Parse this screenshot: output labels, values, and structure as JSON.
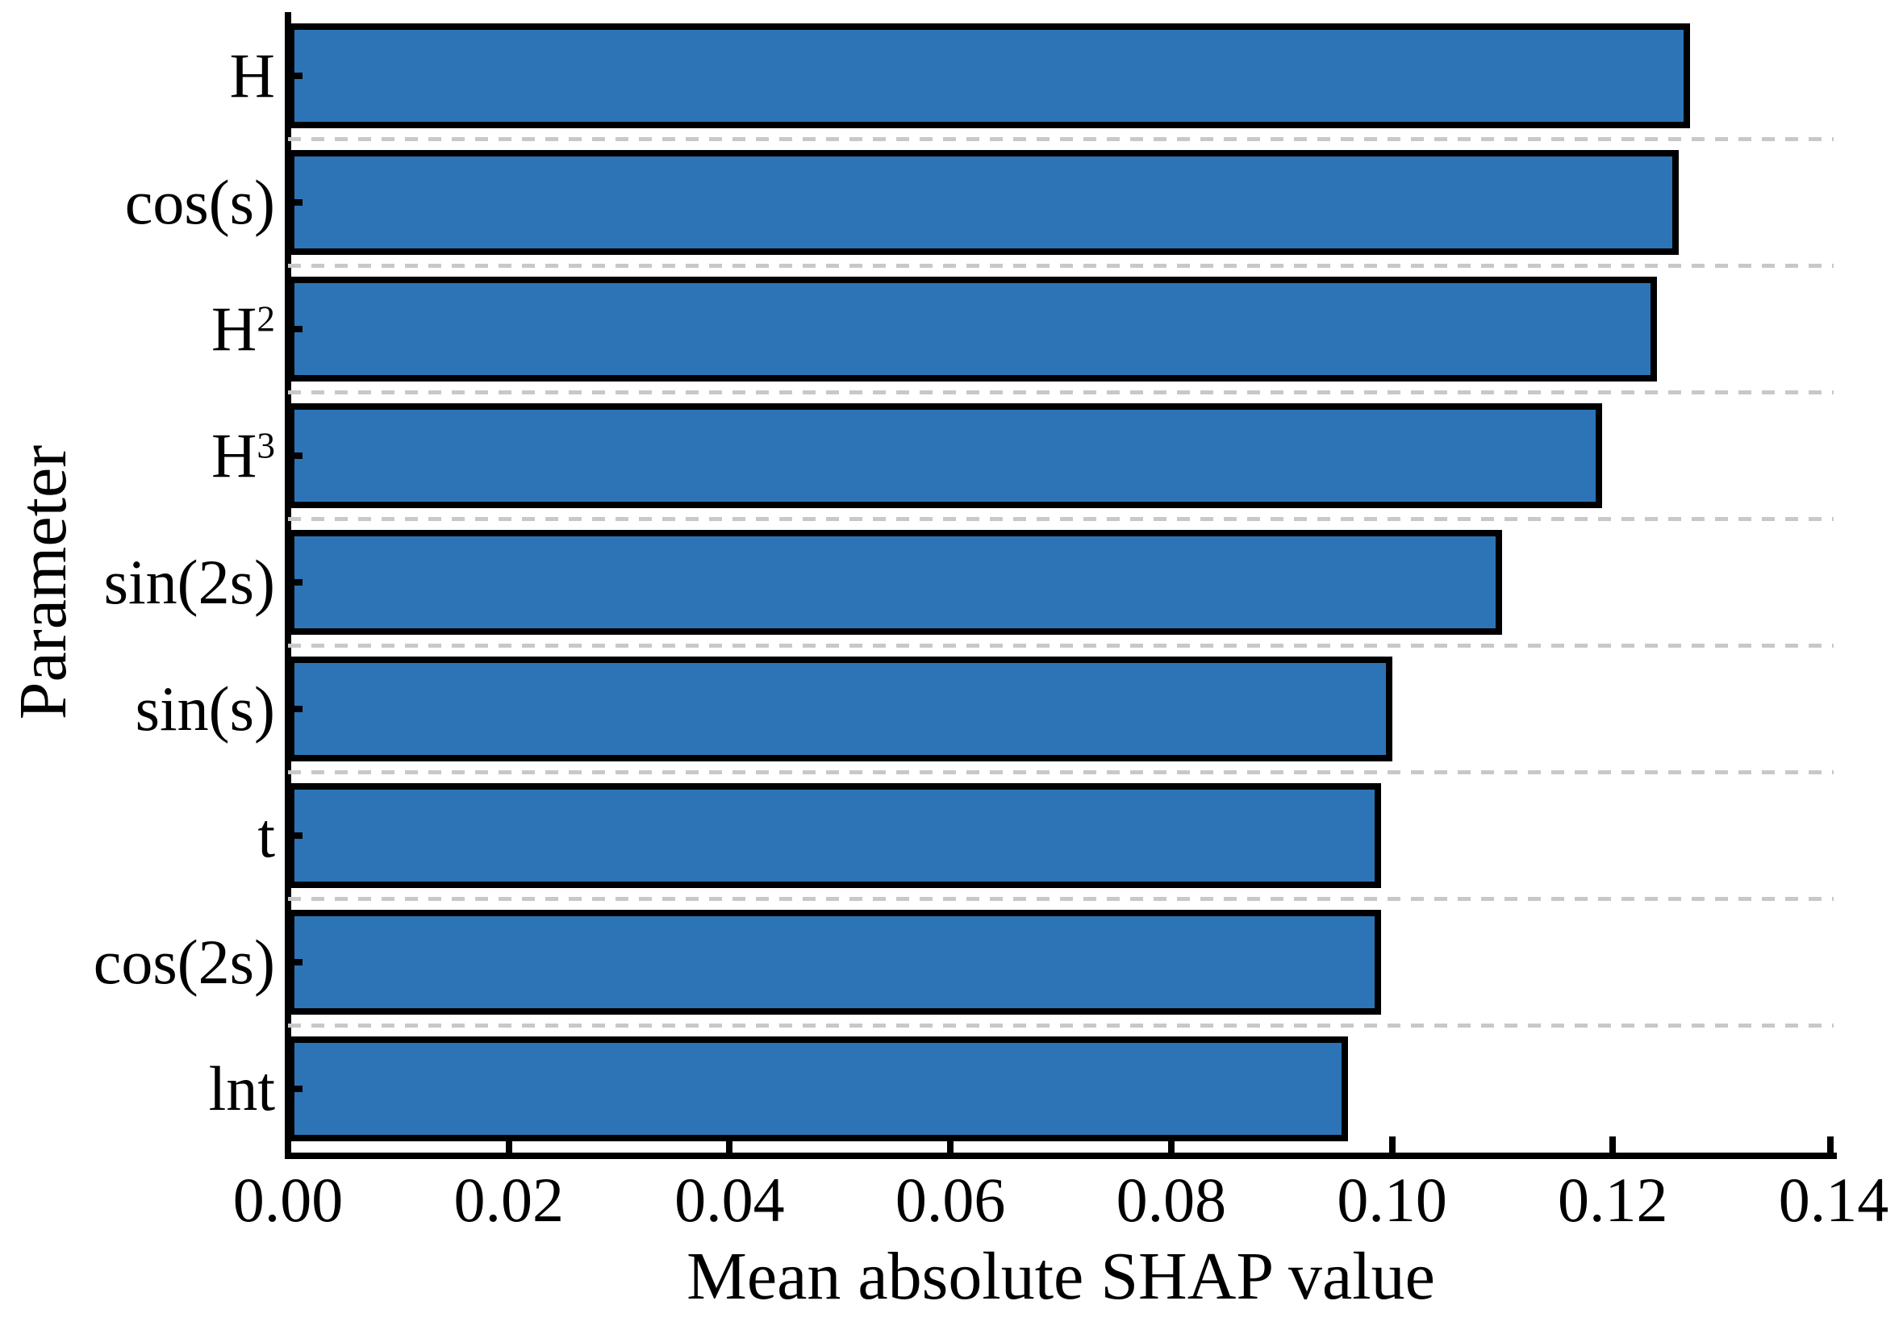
{
  "figure": {
    "background": "#ffffff",
    "bar_fill": "#2d74b6",
    "bar_edge": "#000000",
    "grid_color": "#c8c8c8",
    "axis_color": "#000000"
  },
  "chart_data": {
    "type": "bar",
    "orientation": "horizontal",
    "title": "",
    "xlabel": "Mean absolute SHAP value",
    "ylabel": "Parameter",
    "xlim": [
      0,
      0.14
    ],
    "xticks": [
      0.0,
      0.02,
      0.04,
      0.06,
      0.08,
      0.1,
      0.12,
      0.14
    ],
    "xtick_labels": [
      "0.00",
      "0.02",
      "0.04",
      "0.06",
      "0.08",
      "0.10",
      "0.12",
      "0.14"
    ],
    "grid": "dashed gray horizontal separators between category bands, no top/right spines, inward ticks",
    "legend": "none",
    "categories": [
      "H",
      "cos(s)",
      "H²",
      "H³",
      "sin(2s)",
      "sin(s)",
      "t",
      "cos(2s)",
      "lnt"
    ],
    "categories_rich": [
      {
        "base": "H",
        "sup": ""
      },
      {
        "base": "cos(s)",
        "sup": ""
      },
      {
        "base": "H",
        "sup": "2"
      },
      {
        "base": "H",
        "sup": "3"
      },
      {
        "base": "sin(2s)",
        "sup": ""
      },
      {
        "base": "sin(s)",
        "sup": ""
      },
      {
        "base": "t",
        "sup": ""
      },
      {
        "base": "cos(2s)",
        "sup": ""
      },
      {
        "base": "lnt",
        "sup": ""
      }
    ],
    "values": [
      0.127,
      0.126,
      0.124,
      0.119,
      0.11,
      0.1,
      0.099,
      0.099,
      0.096
    ]
  }
}
